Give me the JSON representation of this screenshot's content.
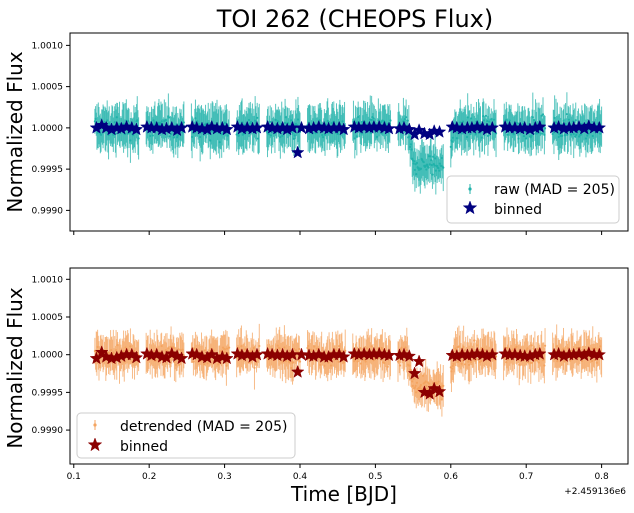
{
  "figure": {
    "title": "TOI 262 (CHEOPS Flux)",
    "xlabel": "Time [BJD]",
    "offset_label": "+2.459136e6"
  },
  "colors": {
    "raw_points": "#20b2aa",
    "raw_binned": "#000080",
    "detrended_points": "#f4a460",
    "detrended_binned": "#8b0000",
    "axis": "#000000"
  },
  "chart_data": [
    {
      "type": "scatter",
      "panel": "top",
      "title": "TOI 262 (CHEOPS Flux)",
      "xlabel": "",
      "ylabel": "Normalized Flux",
      "xlim": [
        0.095,
        0.835
      ],
      "ylim": [
        0.99875,
        1.00115
      ],
      "xticks": [
        0.1,
        0.2,
        0.3,
        0.4,
        0.5,
        0.6,
        0.7,
        0.8
      ],
      "xtick_labels": [],
      "yticks": [
        0.999,
        0.9995,
        1.0,
        1.0005,
        1.001
      ],
      "ytick_labels": [
        "0.9990",
        "0.9995",
        "1.0000",
        "1.0005",
        "1.0010"
      ],
      "legend": [
        "raw (MAD = 205)",
        "binned"
      ],
      "legend_position": "lower-right",
      "series": [
        {
          "name": "raw (MAD = 205)",
          "style": "errorbar-points",
          "segments": [
            [
              0.128,
              0.186
            ],
            [
              0.196,
              0.246
            ],
            [
              0.256,
              0.306
            ],
            [
              0.316,
              0.346
            ],
            [
              0.356,
              0.4
            ],
            [
              0.41,
              0.46
            ],
            [
              0.47,
              0.52
            ],
            [
              0.53,
              0.59
            ],
            [
              0.6,
              0.66
            ],
            [
              0.67,
              0.725
            ],
            [
              0.735,
              0.8
            ]
          ],
          "transit_window": [
            0.542,
            0.605
          ],
          "transit_depth": 0.00045,
          "scatter": 0.0002
        },
        {
          "name": "binned",
          "style": "star",
          "x": [
            0.13,
            0.137,
            0.143,
            0.15,
            0.157,
            0.163,
            0.17,
            0.177,
            0.183,
            0.197,
            0.203,
            0.21,
            0.217,
            0.223,
            0.23,
            0.237,
            0.243,
            0.257,
            0.263,
            0.27,
            0.277,
            0.283,
            0.29,
            0.297,
            0.303,
            0.317,
            0.323,
            0.33,
            0.337,
            0.343,
            0.357,
            0.363,
            0.37,
            0.377,
            0.383,
            0.39,
            0.397,
            0.402,
            0.412,
            0.418,
            0.425,
            0.432,
            0.438,
            0.445,
            0.452,
            0.458,
            0.472,
            0.478,
            0.485,
            0.492,
            0.498,
            0.505,
            0.512,
            0.518,
            0.532,
            0.538,
            0.545,
            0.552,
            0.558,
            0.565,
            0.572,
            0.578,
            0.585,
            0.602,
            0.608,
            0.615,
            0.622,
            0.628,
            0.635,
            0.642,
            0.648,
            0.655,
            0.672,
            0.678,
            0.685,
            0.692,
            0.698,
            0.705,
            0.712,
            0.718,
            0.737,
            0.743,
            0.75,
            0.757,
            0.763,
            0.77,
            0.777,
            0.783,
            0.79,
            0.797
          ],
          "y": [
            1.0,
            1.00003,
            1.0,
            0.99998,
            1.0,
            0.99999,
            1.00001,
            1.0,
            0.99998,
            1.00001,
            1.0,
            1.0,
            0.99998,
            0.99999,
            1.0,
            0.99997,
            1.0,
            1.00001,
            1.0,
            0.99999,
            0.99998,
            1.00001,
            0.99999,
            1.0,
            0.99998,
            1.00001,
            0.99999,
            1.0,
            0.99999,
            1.0,
            1.00001,
            1.0,
            0.99999,
            1.0,
            0.99998,
            1.0,
            0.9997,
            1.0,
            0.99999,
            1.0,
            1.00001,
            1.0,
            0.99999,
            1.0,
            1.0,
            0.99998,
            1.00001,
            1.0,
            1.00001,
            1.0,
            1.00001,
            1.00001,
            1.0,
            0.99999,
            0.99999,
            1.0,
            0.99998,
            0.99992,
            0.99997,
            0.99993,
            0.99992,
            0.99996,
            0.99995,
            1.00001,
            1.0,
            0.99999,
            1.0,
            1.0,
            1.00001,
            1.0,
            0.99998,
            1.0,
            1.00001,
            1.0,
            1.0,
            0.99999,
            1.0,
            0.99998,
            1.0,
            1.00001,
            1.0,
            1.00001,
            0.99999,
            1.0,
            1.0,
            1.00001,
            0.99999,
            1.00002,
            1.0,
            1.0
          ]
        }
      ]
    },
    {
      "type": "scatter",
      "panel": "bottom",
      "title": "",
      "xlabel": "Time [BJD]",
      "ylabel": "Normalized Flux",
      "xlim": [
        0.095,
        0.835
      ],
      "ylim": [
        0.99855,
        1.00115
      ],
      "xticks": [
        0.1,
        0.2,
        0.3,
        0.4,
        0.5,
        0.6,
        0.7,
        0.8
      ],
      "xtick_labels": [
        "0.1",
        "0.2",
        "0.3",
        "0.4",
        "0.5",
        "0.6",
        "0.7",
        "0.8"
      ],
      "yticks": [
        0.999,
        0.9995,
        1.0,
        1.0005,
        1.001
      ],
      "ytick_labels": [
        "0.9990",
        "0.9995",
        "1.0000",
        "1.0005",
        "1.0010"
      ],
      "legend": [
        "detrended (MAD = 205)",
        "binned"
      ],
      "legend_position": "lower-left",
      "series": [
        {
          "name": "detrended (MAD = 205)",
          "style": "errorbar-points",
          "segments": [
            [
              0.128,
              0.186
            ],
            [
              0.196,
              0.246
            ],
            [
              0.256,
              0.306
            ],
            [
              0.316,
              0.346
            ],
            [
              0.356,
              0.4
            ],
            [
              0.41,
              0.46
            ],
            [
              0.47,
              0.52
            ],
            [
              0.53,
              0.59
            ],
            [
              0.6,
              0.66
            ],
            [
              0.67,
              0.725
            ],
            [
              0.735,
              0.8
            ]
          ],
          "transit_window": [
            0.542,
            0.605
          ],
          "transit_depth": 0.00045,
          "scatter": 0.0002
        },
        {
          "name": "binned",
          "style": "star",
          "x": [
            0.13,
            0.137,
            0.143,
            0.15,
            0.157,
            0.163,
            0.17,
            0.177,
            0.183,
            0.197,
            0.203,
            0.21,
            0.217,
            0.223,
            0.23,
            0.237,
            0.243,
            0.257,
            0.263,
            0.27,
            0.277,
            0.283,
            0.29,
            0.297,
            0.303,
            0.317,
            0.323,
            0.33,
            0.337,
            0.343,
            0.357,
            0.363,
            0.37,
            0.377,
            0.383,
            0.39,
            0.397,
            0.402,
            0.412,
            0.418,
            0.425,
            0.432,
            0.438,
            0.445,
            0.452,
            0.458,
            0.472,
            0.478,
            0.485,
            0.492,
            0.498,
            0.505,
            0.512,
            0.518,
            0.532,
            0.538,
            0.545,
            0.552,
            0.558,
            0.565,
            0.572,
            0.578,
            0.585,
            0.602,
            0.608,
            0.615,
            0.622,
            0.628,
            0.635,
            0.642,
            0.648,
            0.655,
            0.672,
            0.678,
            0.685,
            0.692,
            0.698,
            0.705,
            0.712,
            0.718,
            0.737,
            0.743,
            0.75,
            0.757,
            0.763,
            0.77,
            0.777,
            0.783,
            0.79,
            0.797
          ],
          "y": [
            0.99995,
            1.00003,
            0.99997,
            0.99995,
            0.99996,
            0.99998,
            1.0,
            1.0,
            0.99996,
            1.00001,
            0.99999,
            1.0,
            0.99997,
            0.99996,
            1.00001,
            0.99998,
            0.99995,
            1.00001,
            1.0,
            0.99997,
            0.99996,
            1.0,
            0.99995,
            0.99997,
            0.99995,
            1.00001,
            0.99999,
            1.0,
            0.99997,
            1.0,
            1.00001,
            1.0,
            0.99999,
            1.0,
            0.99998,
            1.0,
            0.99977,
            1.0,
            0.99999,
            0.99998,
            1.0,
            0.99997,
            0.99997,
            1.0,
            1.0,
            0.99997,
            1.00001,
            1.0,
            1.00001,
            1.0,
            1.00001,
            1.00001,
            1.0,
            0.99999,
            0.99999,
            1.0,
            0.99998,
            0.99975,
            0.99991,
            0.9995,
            0.99948,
            0.99955,
            0.99951,
            0.99999,
            0.99998,
            1.0,
            0.99999,
            1.0,
            1.00001,
            1.0,
            0.99998,
            1.0,
            1.00001,
            1.0,
            1.0,
            0.99999,
            0.99998,
            0.99998,
            1.0,
            1.00001,
            1.0,
            1.00001,
            0.99998,
            1.0,
            1.0,
            1.00001,
            0.99999,
            1.00002,
            1.0,
            1.0
          ]
        }
      ]
    }
  ]
}
